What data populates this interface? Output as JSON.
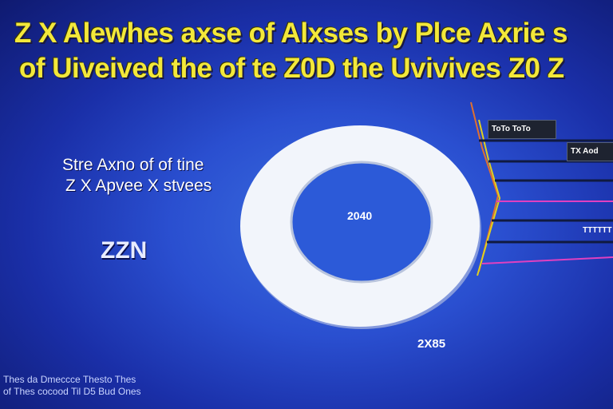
{
  "title": {
    "line1": "Z X  Alewhes axse of Alxses by Plce Axrie s",
    "line2": "of Uiveived the of te Z0D the Uvivives Z0 Z"
  },
  "left_label": {
    "line1": "Stre Axno of of tine",
    "line2": "Z X Apvee X stvees"
  },
  "big_label": "ZZN",
  "ring_value": "2040",
  "bottom_value": "2X85",
  "tags": {
    "tag1": "ToTo ToTo",
    "tag2": "TX Aod"
  },
  "side_label": "TTTTTT",
  "footer": {
    "line1": "Thes da Dmeccce  Thesto Thes",
    "line2": "of Thes cocood  Til D5  Bud Ones"
  },
  "colors": {
    "title": "#f3e83a",
    "ring": "#f2f5fb",
    "accent_magenta": "#e040c0",
    "accent_yellow": "#e0d020",
    "line_dark": "#101a40"
  }
}
